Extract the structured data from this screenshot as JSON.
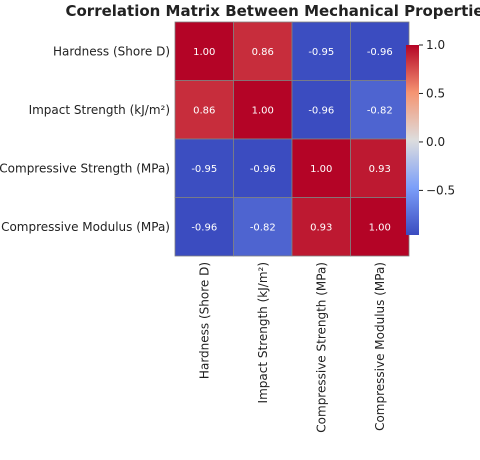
{
  "chart_data": {
    "type": "heatmap",
    "title": "Correlation Matrix Between Mechanical Properties",
    "rows": [
      "Hardness (Shore D)",
      "Impact Strength (kJ/m²)",
      "Compressive Strength (MPa)",
      "Compressive Modulus (MPa)"
    ],
    "columns": [
      "Hardness (Shore D)",
      "Impact Strength (kJ/m²)",
      "Compressive Strength (MPa)",
      "Compressive Modulus (MPa)"
    ],
    "values": [
      [
        1.0,
        0.86,
        -0.95,
        -0.96
      ],
      [
        0.86,
        1.0,
        -0.96,
        -0.82
      ],
      [
        -0.95,
        -0.96,
        1.0,
        0.93
      ],
      [
        -0.96,
        -0.82,
        0.93,
        1.0
      ]
    ],
    "value_labels": [
      [
        "1.00",
        "0.86",
        "-0.95",
        "-0.96"
      ],
      [
        "0.86",
        "1.00",
        "-0.96",
        "-0.82"
      ],
      [
        "-0.95",
        "-0.96",
        "1.00",
        "0.93"
      ],
      [
        "-0.96",
        "-0.82",
        "0.93",
        "1.00"
      ]
    ],
    "colormap": "coolwarm",
    "colorbar": {
      "range": [
        -0.96,
        1.0
      ],
      "ticks": [
        1.0,
        0.5,
        0.0,
        -0.5
      ],
      "tick_labels": [
        "1.0",
        "0.5",
        "0.0",
        "−0.5"
      ]
    },
    "colors": {
      "low": "#3b4cc0",
      "mid": "#dddddd",
      "high": "#b40426",
      "cell_border": "#808080"
    }
  }
}
